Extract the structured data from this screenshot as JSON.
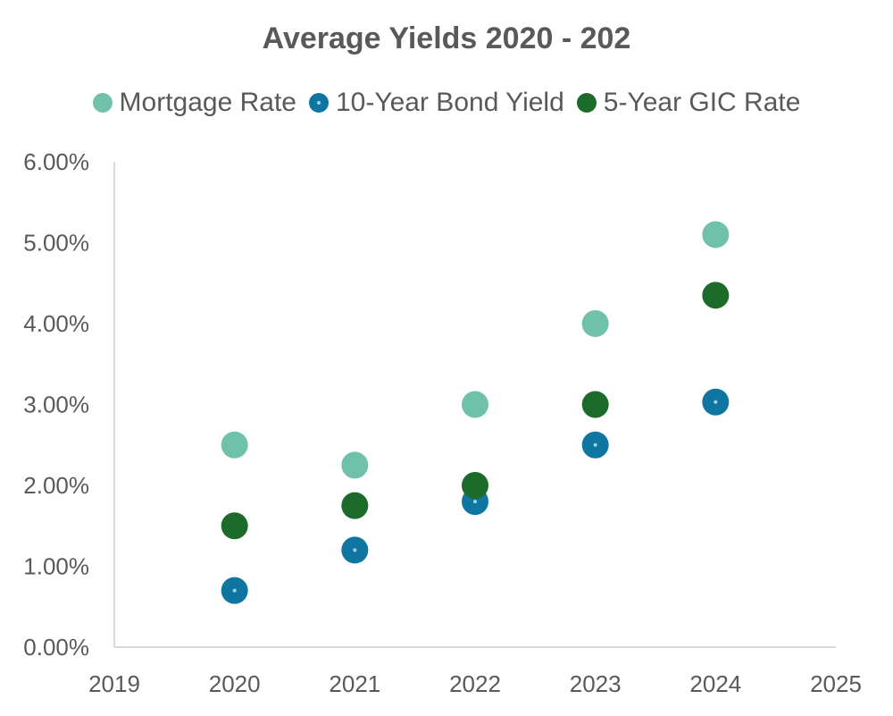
{
  "chart_data": {
    "type": "scatter",
    "title": "Average Yields 2020 - 202",
    "xlabel": "",
    "ylabel": "",
    "xlim": [
      2019,
      2025
    ],
    "ylim": [
      0,
      0.06
    ],
    "x_ticks": [
      "2019",
      "2020",
      "2021",
      "2022",
      "2023",
      "2024",
      "2025"
    ],
    "y_ticks": [
      "0.00%",
      "1.00%",
      "2.00%",
      "3.00%",
      "4.00%",
      "5.00%",
      "6.00%"
    ],
    "legend_position": "top",
    "grid": false,
    "series": [
      {
        "name": "Mortgage Rate",
        "color": "#70c1a9",
        "marker": "circle",
        "x": [
          2020,
          2021,
          2022,
          2023,
          2024
        ],
        "y": [
          0.025,
          0.0225,
          0.03,
          0.04,
          0.051
        ]
      },
      {
        "name": "10-Year Bond Yield",
        "color": "#0e76a0",
        "marker": "circle-dot",
        "x": [
          2020,
          2021,
          2022,
          2023,
          2024
        ],
        "y": [
          0.007,
          0.012,
          0.018,
          0.025,
          0.0303
        ]
      },
      {
        "name": "5-Year GIC Rate",
        "color": "#1c6b2a",
        "marker": "circle",
        "x": [
          2020,
          2021,
          2022,
          2023,
          2024
        ],
        "y": [
          0.015,
          0.0175,
          0.02,
          0.03,
          0.0435
        ]
      }
    ]
  }
}
